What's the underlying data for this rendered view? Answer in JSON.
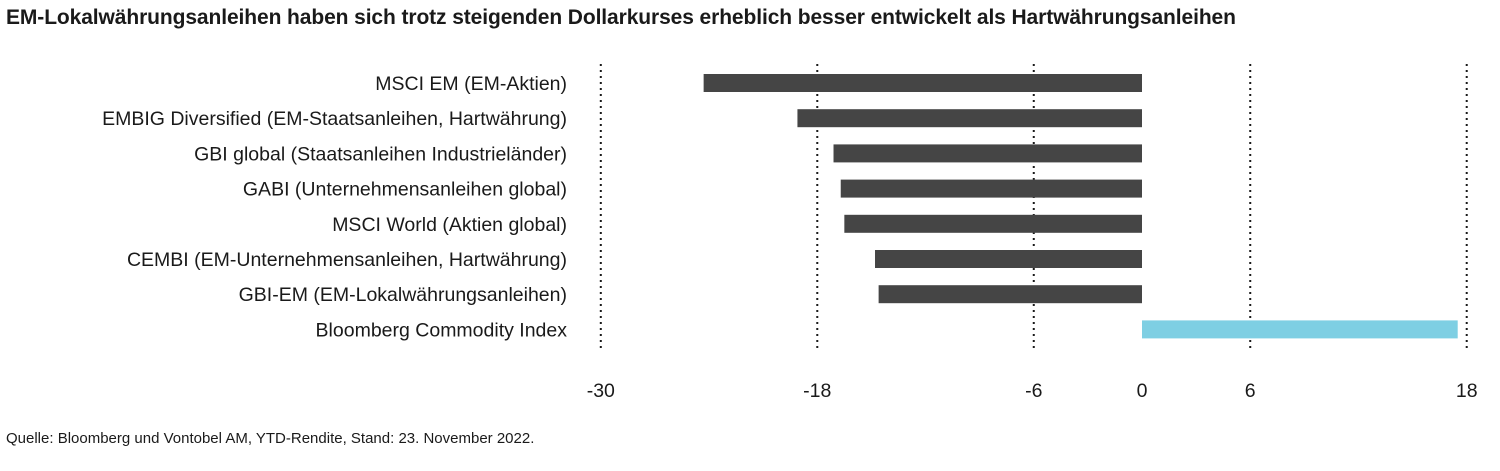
{
  "chart_data": {
    "type": "bar",
    "orientation": "horizontal",
    "title": "EM-Lokalwährungsanleihen haben sich trotz steigenden Dollarkurses erheblich besser entwickelt als Hartwährungsanleihen",
    "categories": [
      "MSCI EM (EM-Aktien)",
      "EMBIG Diversified (EM-Staatsanleihen, Hartwährung)",
      "GBI global (Staatsanleihen Industrieländer)",
      "GABI (Unternehmensanleihen global)",
      "MSCI World (Aktien global)",
      "CEMBI (EM-Unternehmensanleihen, Hartwährung)",
      "GBI-EM (EM-Lokalwährungsanleihen)",
      "Bloomberg Commodity Index"
    ],
    "values": [
      -24.3,
      -19.1,
      -17.1,
      -16.7,
      -16.5,
      -14.8,
      -14.6,
      17.5
    ],
    "bar_colors": [
      "#454545",
      "#454545",
      "#454545",
      "#454545",
      "#454545",
      "#454545",
      "#454545",
      "#7ecfe3"
    ],
    "xticks": [
      -30,
      -18,
      -6,
      0,
      6,
      18
    ],
    "xtick_labels": [
      "-30",
      "-18",
      "-6",
      "0",
      "6",
      "18"
    ],
    "xlim": [
      -30,
      18
    ],
    "grid": "vertical-dotted",
    "legend": "none"
  },
  "footer": {
    "source": "Quelle: Bloomberg und Vontobel AM, YTD-Rendite, Stand: 23. November 2022."
  }
}
